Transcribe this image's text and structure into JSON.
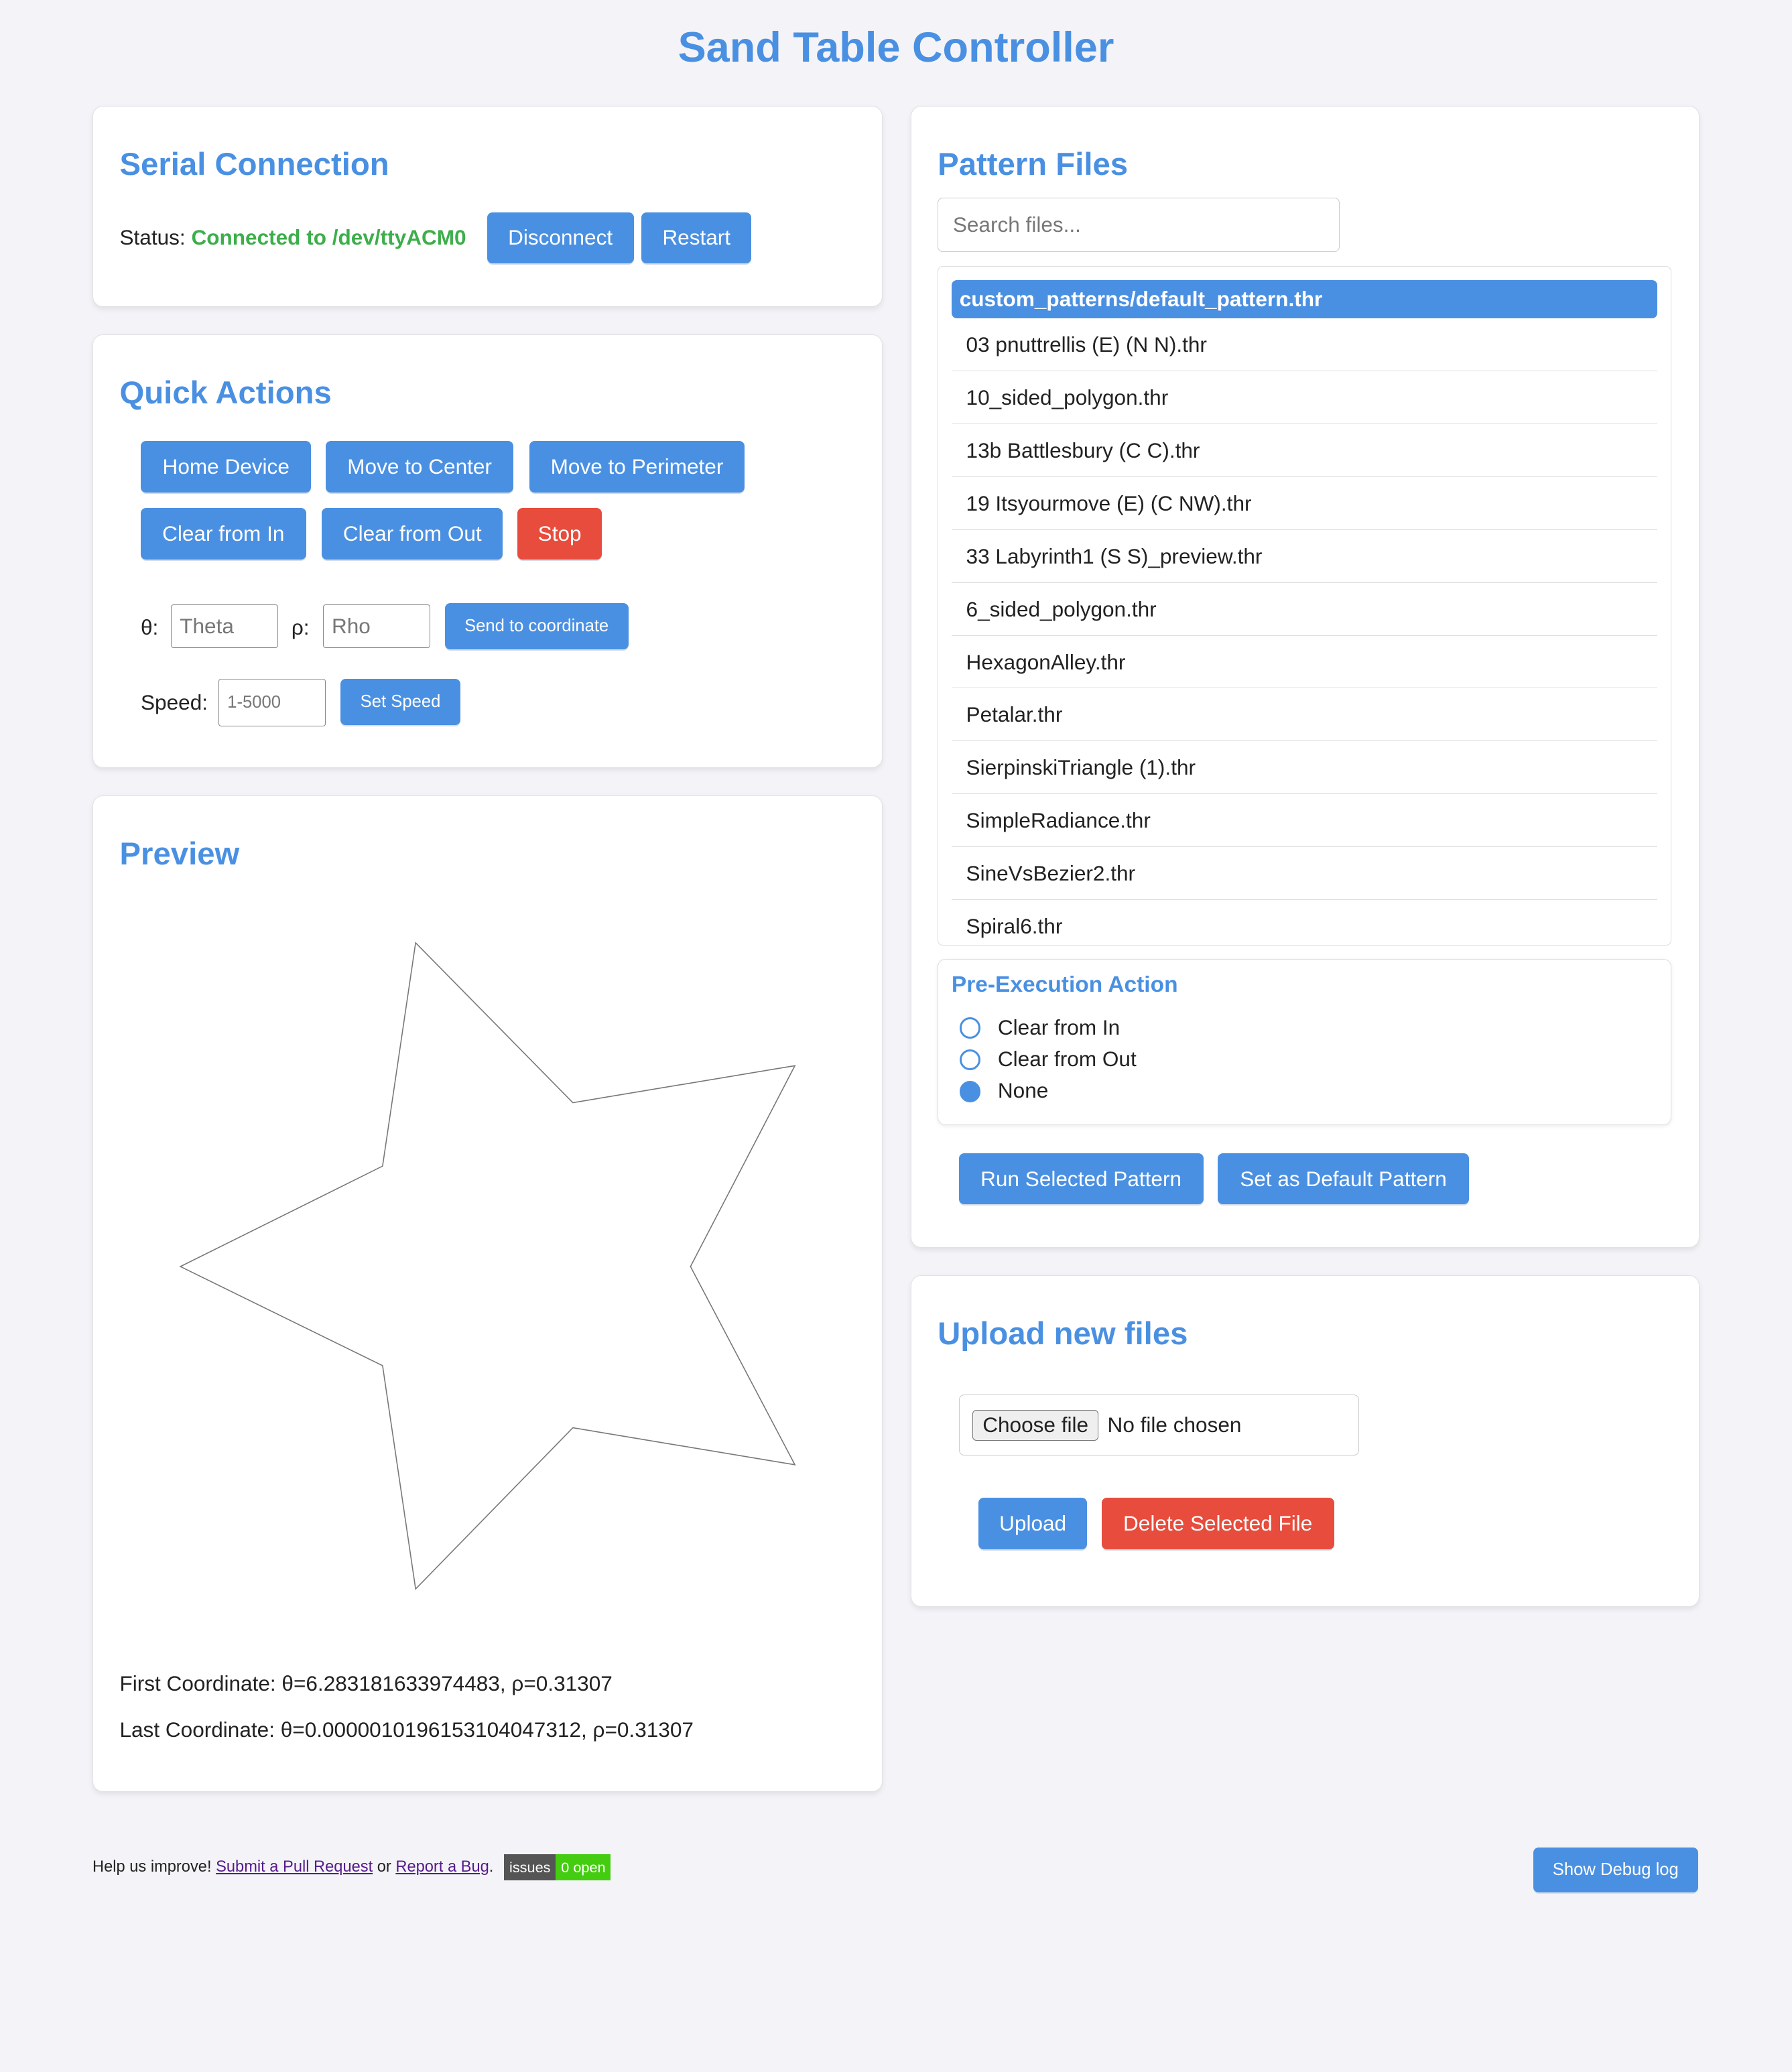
{
  "title": "Sand Table Controller",
  "serial": {
    "heading": "Serial Connection",
    "status_label": "Status:",
    "status_value": "Connected to /dev/ttyACM0",
    "status_color": "#3cae4a",
    "disconnect": "Disconnect",
    "restart": "Restart"
  },
  "quick": {
    "heading": "Quick Actions",
    "home": "Home Device",
    "center": "Move to Center",
    "perimeter": "Move to Perimeter",
    "clear_in": "Clear from In",
    "clear_out": "Clear from Out",
    "stop": "Stop",
    "theta_label": "θ:",
    "theta_placeholder": "Theta",
    "rho_label": "ρ:",
    "rho_placeholder": "Rho",
    "send": "Send to coordinate",
    "speed_label": "Speed:",
    "speed_placeholder": "1-5000",
    "set_speed": "Set Speed"
  },
  "preview": {
    "heading": "Preview",
    "first": "First Coordinate: θ=6.283181633974483, ρ=0.31307",
    "last": "Last Coordinate: θ=0.000001019615310404731​2, ρ=0.31307"
  },
  "patterns": {
    "heading": "Pattern Files",
    "search_placeholder": "Search files...",
    "files": [
      "custom_patterns/default_pattern.thr",
      "03 pnuttrellis (E) (N N).thr",
      "10_sided_polygon.thr",
      "13b Battlesbury (C C).thr",
      "19 Itsyourmove (E) (C NW).thr",
      "33 Labyrinth1 (S S)_preview.thr",
      "6_sided_polygon.thr",
      "HexagonAlley.thr",
      "Petalar.thr",
      "SierpinskiTriangle (1).thr",
      "SimpleRadiance.thr",
      "SineVsBezier2.thr",
      "Spiral6.thr"
    ],
    "selected_index": 0,
    "pre_heading": "Pre-Execution Action",
    "pre_options": [
      "Clear from In",
      "Clear from Out",
      "None"
    ],
    "pre_selected": "None",
    "run": "Run Selected Pattern",
    "set_default": "Set as Default Pattern"
  },
  "upload": {
    "heading": "Upload new files",
    "choose": "Choose file",
    "no_file": "No file chosen",
    "upload": "Upload",
    "delete": "Delete Selected File"
  },
  "footer": {
    "help": "Help us improve!",
    "pr_link": "Submit a Pull Request",
    "or": "or",
    "bug_link": "Report a Bug",
    "period": ".",
    "badge_left": "issues",
    "badge_right": "0 open",
    "debug": "Show Debug log"
  },
  "colors": {
    "accent": "#4a90e2",
    "danger": "#e74c3c",
    "badge_green": "#44cc11",
    "badge_gray": "#555555"
  }
}
